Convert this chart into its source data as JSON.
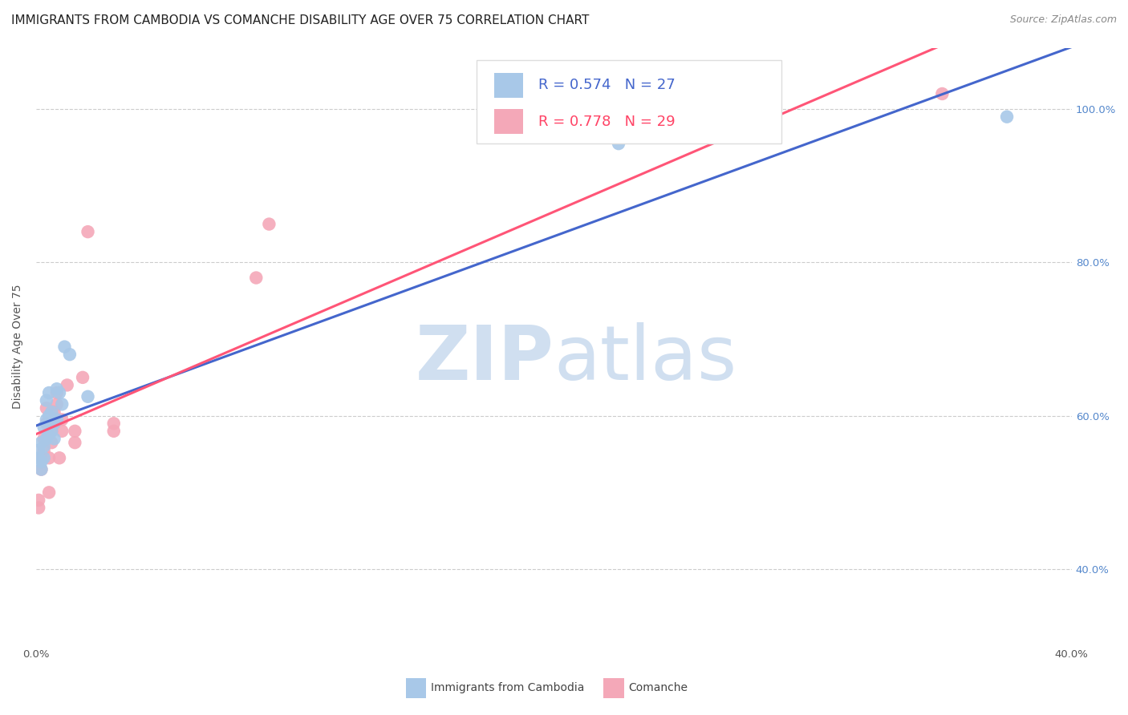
{
  "title": "IMMIGRANTS FROM CAMBODIA VS COMANCHE DISABILITY AGE OVER 75 CORRELATION CHART",
  "source": "Source: ZipAtlas.com",
  "ylabel": "Disability Age Over 75",
  "legend_label1": "Immigrants from Cambodia",
  "legend_label2": "Comanche",
  "R1": 0.574,
  "N1": 27,
  "R2": 0.778,
  "N2": 29,
  "xlim": [
    0.0,
    0.4
  ],
  "ylim": [
    0.3,
    1.08
  ],
  "ytick_values": [
    0.4,
    0.6,
    0.8,
    1.0
  ],
  "ytick_labels": [
    "40.0%",
    "60.0%",
    "80.0%",
    "100.0%"
  ],
  "xtick_positions": [
    0.0,
    0.05,
    0.1,
    0.15,
    0.2,
    0.25,
    0.3,
    0.35,
    0.4
  ],
  "color_blue": "#A8C8E8",
  "color_pink": "#F4A8B8",
  "color_blue_line": "#4466CC",
  "color_pink_line": "#FF5577",
  "color_blue_text": "#4466CC",
  "color_pink_text": "#FF4466",
  "color_right_axis": "#5588CC",
  "background_color": "#FFFFFF",
  "grid_color": "#CCCCCC",
  "watermark_color": "#D0DFF0",
  "scatter_blue_x": [
    0.001,
    0.001,
    0.002,
    0.002,
    0.002,
    0.003,
    0.003,
    0.003,
    0.004,
    0.004,
    0.004,
    0.005,
    0.005,
    0.005,
    0.006,
    0.006,
    0.007,
    0.007,
    0.008,
    0.008,
    0.009,
    0.01,
    0.011,
    0.013,
    0.02,
    0.225,
    0.375
  ],
  "scatter_blue_y": [
    0.545,
    0.555,
    0.53,
    0.54,
    0.565,
    0.545,
    0.56,
    0.585,
    0.57,
    0.595,
    0.62,
    0.575,
    0.6,
    0.63,
    0.58,
    0.605,
    0.57,
    0.59,
    0.595,
    0.635,
    0.63,
    0.615,
    0.69,
    0.68,
    0.625,
    0.955,
    0.99
  ],
  "scatter_pink_x": [
    0.001,
    0.001,
    0.002,
    0.002,
    0.003,
    0.003,
    0.004,
    0.004,
    0.005,
    0.005,
    0.006,
    0.006,
    0.007,
    0.007,
    0.008,
    0.008,
    0.009,
    0.01,
    0.01,
    0.012,
    0.015,
    0.015,
    0.018,
    0.02,
    0.03,
    0.03,
    0.085,
    0.09,
    0.35
  ],
  "scatter_pink_y": [
    0.48,
    0.49,
    0.53,
    0.545,
    0.555,
    0.57,
    0.59,
    0.61,
    0.5,
    0.545,
    0.565,
    0.58,
    0.59,
    0.605,
    0.615,
    0.63,
    0.545,
    0.58,
    0.595,
    0.64,
    0.565,
    0.58,
    0.65,
    0.84,
    0.58,
    0.59,
    0.78,
    0.85,
    1.02
  ],
  "title_fontsize": 11,
  "source_fontsize": 9,
  "axis_label_fontsize": 10,
  "tick_fontsize": 9.5,
  "legend_fontsize": 13
}
